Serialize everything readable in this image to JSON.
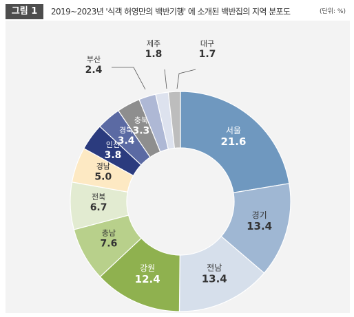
{
  "figure": {
    "label": "그림 1",
    "title": "2019~2023년 '식객 허영만의 백반기행' 에 소개된 백반집의 지역 분포도",
    "unit": "(단위: %)"
  },
  "colors": {
    "label_bg": "#4d4d4d",
    "panel_bg": "#f3f3f3",
    "label_dark": "#333333",
    "label_light": "#ffffff"
  },
  "chart_data": {
    "type": "pie",
    "donut": true,
    "title": "2019~2023년 '식객 허영만의 백반기행' 에 소개된 백반집의 지역 분포도",
    "unit": "(단위: %)",
    "slices": [
      {
        "label": "서울",
        "value": 21.6,
        "color": "#6f98bf",
        "text_color": "#ffffff"
      },
      {
        "label": "경기",
        "value": 13.4,
        "color": "#9fb7d3",
        "text_color": "#333333"
      },
      {
        "label": "전남",
        "value": 13.4,
        "color": "#d6dfeb",
        "text_color": "#333333"
      },
      {
        "label": "강원",
        "value": 12.4,
        "color": "#8fb14f",
        "text_color": "#ffffff"
      },
      {
        "label": "충남",
        "value": 7.6,
        "color": "#b8d08b",
        "text_color": "#333333"
      },
      {
        "label": "전북",
        "value": 6.7,
        "color": "#e2ebd1",
        "text_color": "#333333"
      },
      {
        "label": "경남",
        "value": 5.0,
        "color": "#fde9c3",
        "text_color": "#333333"
      },
      {
        "label": "인천",
        "value": 3.8,
        "color": "#2b3b7e",
        "text_color": "#ffffff"
      },
      {
        "label": "경북",
        "value": 3.4,
        "color": "#5b6aa3",
        "text_color": "#ffffff"
      },
      {
        "label": "충북",
        "value": 3.3,
        "color": "#8e8e8e",
        "text_color": "#ffffff"
      },
      {
        "label": "부산",
        "value": 2.4,
        "color": "#aeb8d5",
        "text_color": "#333333"
      },
      {
        "label": "제주",
        "value": 1.8,
        "color": "#dde2ee",
        "text_color": "#333333"
      },
      {
        "label": "대구",
        "value": 1.7,
        "color": "#bdbdbd",
        "text_color": "#333333"
      }
    ]
  }
}
